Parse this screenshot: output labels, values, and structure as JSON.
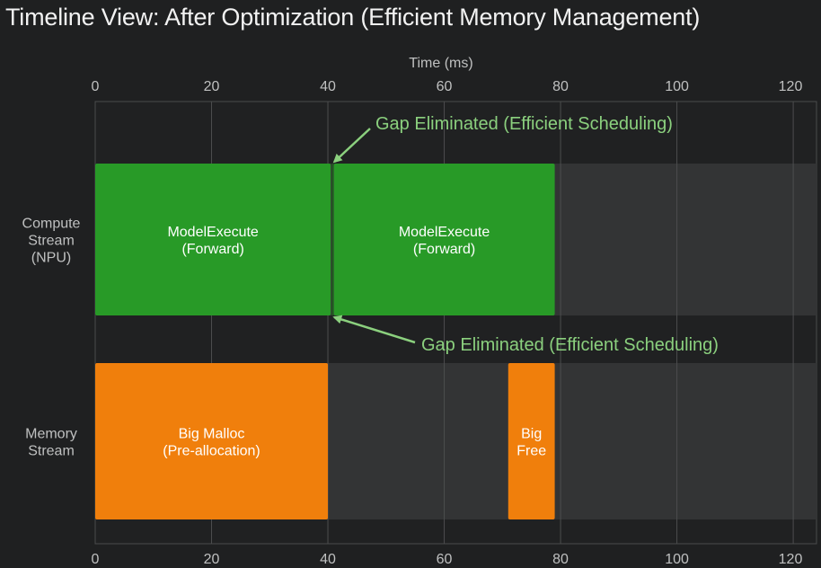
{
  "title": "Timeline View: After Optimization (Efficient Memory Management)",
  "chart_data": {
    "type": "gantt",
    "xlabel": "Time (ms)",
    "xlim": [
      0,
      124
    ],
    "ticks": [
      0,
      20,
      40,
      60,
      80,
      100,
      120
    ],
    "tick_labels": [
      "0",
      "20",
      "40",
      "60",
      "80",
      "100",
      "120"
    ],
    "grid": true,
    "lanes": [
      {
        "name": "compute",
        "label_lines": [
          "Compute",
          "Stream",
          "(NPU)"
        ]
      },
      {
        "name": "memory",
        "label_lines": [
          "Memory",
          "Stream"
        ]
      }
    ],
    "tasks": [
      {
        "lane": 0,
        "start": 0,
        "end": 40.5,
        "label_lines": [
          "ModelExecute",
          "(Forward)"
        ],
        "color": "#289a27"
      },
      {
        "lane": 0,
        "start": 41,
        "end": 79,
        "label_lines": [
          "ModelExecute",
          "(Forward)"
        ],
        "color": "#289a27"
      },
      {
        "lane": 1,
        "start": 0,
        "end": 40,
        "label_lines": [
          "Big Malloc",
          "(Pre-allocation)"
        ],
        "color": "#f07f0c"
      },
      {
        "lane": 1,
        "start": 71,
        "end": 79,
        "label_lines": [
          "Big",
          "Free"
        ],
        "color": "#f07f0c"
      }
    ],
    "annotations": [
      {
        "text": "Gap Eliminated (Efficient Scheduling)",
        "at_time": 40.8,
        "position": "top-right",
        "color": "#8bd07e"
      },
      {
        "text": "Gap Eliminated (Efficient Scheduling)",
        "at_time": 40.8,
        "position": "bottom-right",
        "color": "#8bd07e"
      }
    ],
    "colors": {
      "compute": "#289a27",
      "memory": "#f07f0c",
      "annotation": "#8bd07e",
      "background": "#1f2021"
    }
  }
}
